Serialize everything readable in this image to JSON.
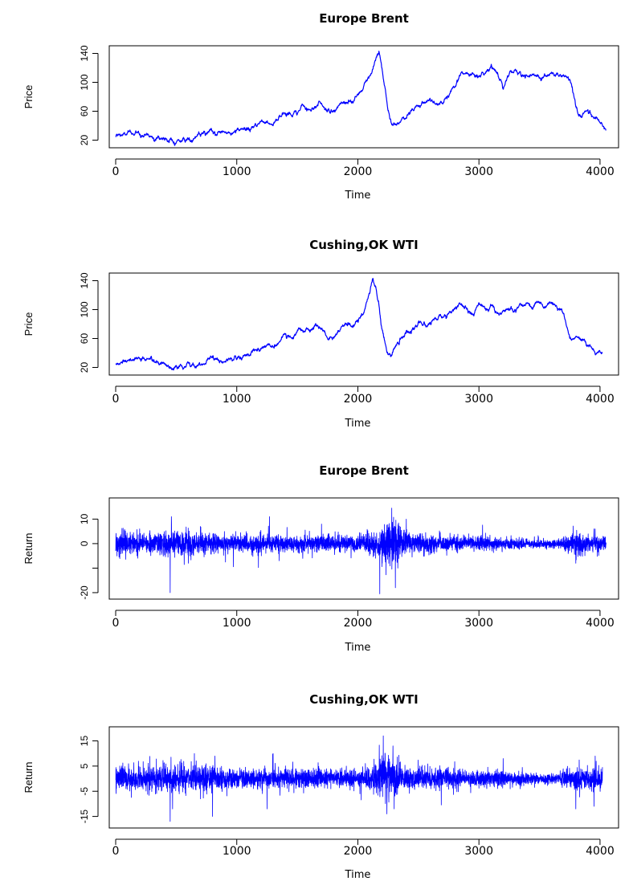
{
  "chart_data": [
    {
      "type": "line",
      "title": "Europe Brent",
      "xlabel": "Time",
      "ylabel": "Price",
      "xlim": [
        0,
        4100
      ],
      "ylim": [
        15,
        145
      ],
      "xticks": [
        0,
        1000,
        2000,
        3000,
        4000
      ],
      "yticks": [
        20,
        60,
        100,
        140
      ],
      "color": "#0000ff",
      "noise": 2,
      "series": [
        {
          "x": [
            0,
            50,
            100,
            200,
            300,
            400,
            480,
            550,
            650,
            800,
            900,
            1000,
            1100,
            1200,
            1250,
            1300,
            1350,
            1400,
            1450,
            1500,
            1550,
            1600,
            1650,
            1700,
            1750,
            1800,
            1850,
            1900,
            1950,
            2000,
            2050,
            2100,
            2150,
            2175,
            2200,
            2250,
            2280,
            2300,
            2350,
            2400,
            2450,
            2500,
            2550,
            2600,
            2650,
            2700,
            2750,
            2800,
            2850,
            2900,
            2950,
            3000,
            3050,
            3100,
            3150,
            3200,
            3250,
            3300,
            3350,
            3400,
            3450,
            3500,
            3550,
            3600,
            3650,
            3700,
            3750,
            3800,
            3850,
            3900,
            3950,
            4000,
            4050
          ],
          "values": [
            25,
            27,
            28,
            30,
            26,
            23,
            18,
            20,
            24,
            30,
            30,
            31,
            35,
            45,
            48,
            44,
            52,
            58,
            55,
            60,
            66,
            62,
            70,
            72,
            60,
            58,
            68,
            75,
            72,
            80,
            95,
            112,
            130,
            143,
            118,
            60,
            38,
            42,
            45,
            55,
            62,
            68,
            70,
            73,
            72,
            76,
            84,
            96,
            115,
            114,
            112,
            110,
            113,
            124,
            118,
            95,
            108,
            112,
            110,
            111,
            113,
            108,
            110,
            113,
            112,
            110,
            104,
            65,
            52,
            64,
            54,
            42,
            38
          ]
        }
      ]
    },
    {
      "type": "line",
      "title": "Cushing,OK WTI",
      "xlabel": "Time",
      "ylabel": "Price",
      "xlim": [
        0,
        4100
      ],
      "ylim": [
        15,
        145
      ],
      "xticks": [
        0,
        1000,
        2000,
        3000,
        4000
      ],
      "yticks": [
        20,
        60,
        100,
        140
      ],
      "color": "#0000ff",
      "noise": 2,
      "series": [
        {
          "x": [
            0,
            50,
            100,
            200,
            300,
            400,
            480,
            550,
            650,
            800,
            900,
            1000,
            1100,
            1200,
            1250,
            1300,
            1350,
            1400,
            1450,
            1500,
            1550,
            1600,
            1650,
            1700,
            1750,
            1800,
            1850,
            1900,
            1950,
            2000,
            2050,
            2100,
            2125,
            2150,
            2200,
            2240,
            2280,
            2350,
            2400,
            2450,
            2500,
            2550,
            2600,
            2650,
            2700,
            2750,
            2800,
            2850,
            2900,
            2950,
            3000,
            3050,
            3100,
            3150,
            3200,
            3300,
            3400,
            3450,
            3500,
            3550,
            3600,
            3650,
            3700,
            3750,
            3800,
            3850,
            3900,
            3950,
            4000,
            4020
          ],
          "values": [
            25,
            28,
            30,
            33,
            28,
            24,
            18,
            22,
            25,
            32,
            30,
            33,
            38,
            48,
            52,
            46,
            55,
            62,
            60,
            68,
            72,
            68,
            75,
            74,
            62,
            60,
            70,
            80,
            78,
            88,
            100,
            128,
            145,
            130,
            72,
            36,
            42,
            58,
            68,
            74,
            78,
            82,
            80,
            86,
            90,
            96,
            100,
            110,
            102,
            92,
            108,
            100,
            104,
            94,
            98,
            100,
            108,
            104,
            106,
            100,
            106,
            104,
            96,
            60,
            56,
            60,
            50,
            42,
            38,
            38
          ]
        }
      ]
    },
    {
      "type": "line",
      "title": "Europe Brent",
      "xlabel": "Time",
      "ylabel": "Return",
      "xlim": [
        0,
        4100
      ],
      "ylim": [
        -21,
        17
      ],
      "xticks": [
        0,
        1000,
        2000,
        3000,
        4000
      ],
      "yticks": [
        -20,
        -10,
        0,
        10
      ],
      "yticklabels": [
        "-20",
        "",
        "0",
        "10"
      ],
      "color": "#0000ff",
      "points": 4050,
      "envelope_x": [
        0,
        200,
        400,
        500,
        800,
        1000,
        1200,
        1500,
        1800,
        2000,
        2150,
        2250,
        2300,
        2350,
        2500,
        2800,
        3000,
        3300,
        3500,
        3650,
        3750,
        3800,
        3900,
        4050
      ],
      "envelope_sd": [
        2.2,
        2.0,
        2.6,
        2.8,
        2.0,
        1.6,
        1.8,
        1.8,
        1.7,
        1.7,
        2.5,
        4.5,
        4.8,
        3.0,
        2.0,
        1.6,
        1.5,
        1.2,
        0.9,
        0.8,
        1.6,
        2.2,
        1.8,
        1.6
      ],
      "spikes": [
        [
          450,
          -20
        ],
        [
          460,
          11
        ],
        [
          600,
          -8
        ],
        [
          700,
          7
        ],
        [
          1270,
          11
        ],
        [
          1350,
          -7
        ],
        [
          1700,
          8
        ],
        [
          2280,
          14.5
        ],
        [
          2310,
          -18
        ],
        [
          2330,
          -10
        ],
        [
          2400,
          10
        ],
        [
          3800,
          -8
        ],
        [
          3950,
          6
        ]
      ]
    },
    {
      "type": "line",
      "title": "Cushing,OK WTI",
      "xlabel": "Time",
      "ylabel": "Return",
      "xlim": [
        0,
        4100
      ],
      "ylim": [
        -18,
        19
      ],
      "xticks": [
        0,
        1000,
        2000,
        3000,
        4000
      ],
      "yticks": [
        -15,
        -5,
        5,
        15
      ],
      "yticklabels": [
        "-15",
        "-5",
        "5",
        "15"
      ],
      "color": "#0000ff",
      "points": 4020,
      "envelope_x": [
        0,
        200,
        400,
        500,
        800,
        1000,
        1200,
        1500,
        1800,
        2000,
        2150,
        2200,
        2250,
        2300,
        2400,
        2800,
        3000,
        3300,
        3500,
        3650,
        3750,
        3800,
        3900,
        4020
      ],
      "envelope_sd": [
        2.4,
        2.4,
        2.8,
        2.8,
        2.4,
        1.9,
        2.0,
        2.0,
        1.9,
        1.9,
        3.0,
        4.8,
        5.2,
        3.8,
        2.4,
        1.8,
        1.7,
        1.4,
        1.1,
        1.0,
        1.8,
        2.4,
        2.2,
        2.0
      ],
      "spikes": [
        [
          450,
          -17
        ],
        [
          470,
          -12
        ],
        [
          650,
          10
        ],
        [
          800,
          -15
        ],
        [
          820,
          9
        ],
        [
          1250,
          -12
        ],
        [
          1300,
          10
        ],
        [
          2210,
          17
        ],
        [
          2240,
          -14
        ],
        [
          2290,
          13
        ],
        [
          2300,
          -12
        ],
        [
          3200,
          8
        ],
        [
          3800,
          -12
        ],
        [
          3950,
          -11
        ],
        [
          3960,
          9
        ]
      ]
    }
  ]
}
